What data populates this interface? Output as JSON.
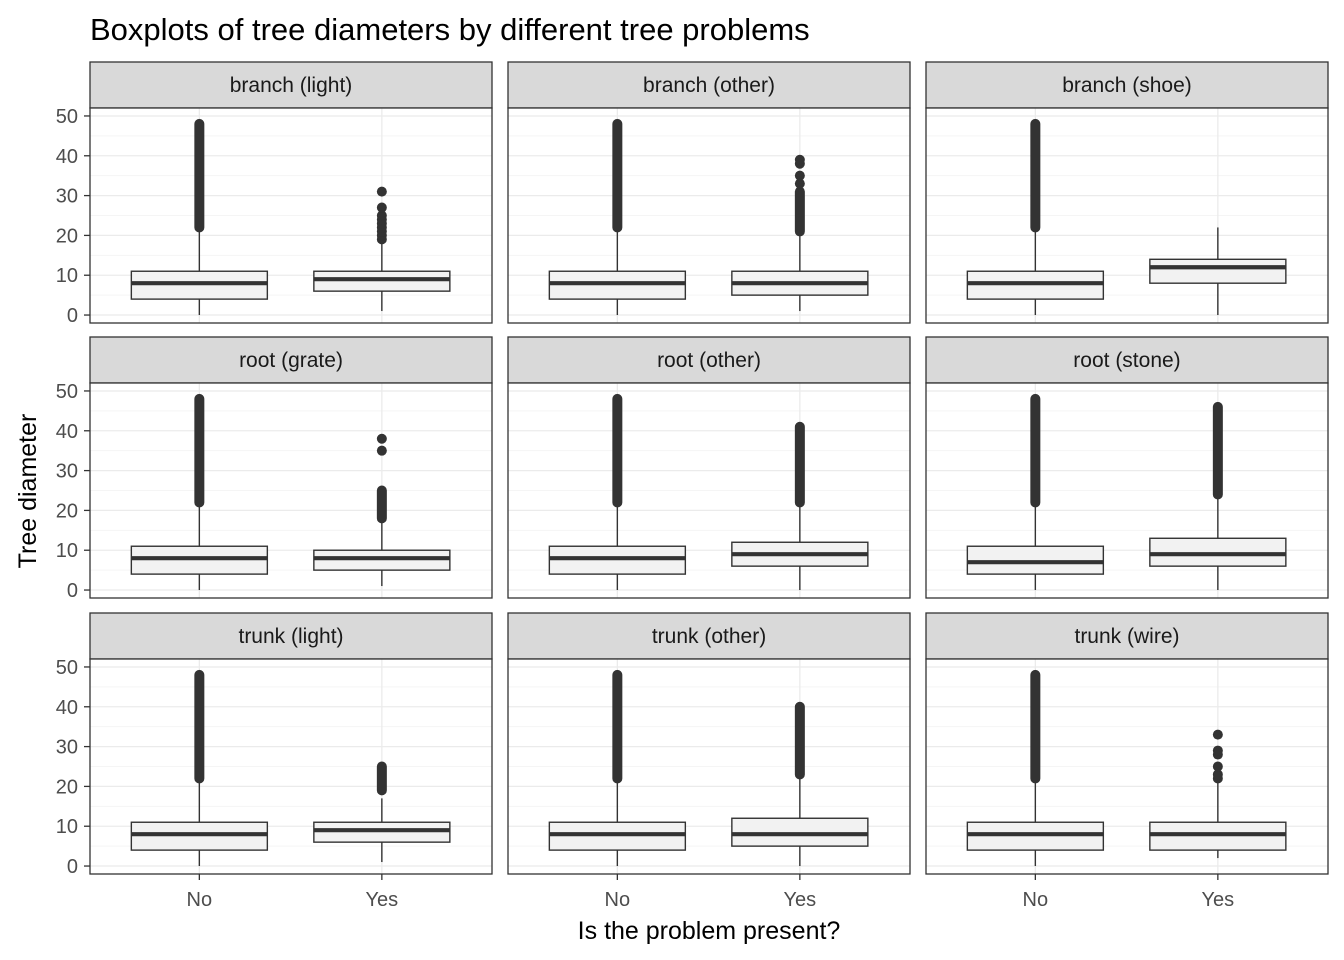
{
  "chart_data": {
    "type": "boxplot",
    "title": "Boxplots of tree diameters by different tree problems",
    "xlabel": "Is the problem present?",
    "ylabel": "Tree diameter",
    "categories": [
      "No",
      "Yes"
    ],
    "ylim": [
      -2,
      52
    ],
    "yticks": [
      0,
      10,
      20,
      30,
      40,
      50
    ],
    "grid": true,
    "colors": {
      "box_fill": "#f2f2f2",
      "box_stroke": "#333333",
      "strip_fill": "#d9d9d9",
      "panel_border": "#333333",
      "grid_major": "#ebebeb",
      "grid_minor": "#f5f5f5"
    },
    "panels": [
      {
        "label": "branch (light)",
        "boxes": [
          {
            "category": "No",
            "min": 0,
            "q1": 4,
            "median": 8,
            "q3": 11,
            "max": 22,
            "outliers_from": 22,
            "outliers_to": 48,
            "outliers": []
          },
          {
            "category": "Yes",
            "min": 1,
            "q1": 6,
            "median": 9,
            "q3": 11,
            "max": 18,
            "outliers_from": null,
            "outliers_to": null,
            "outliers": [
              19,
              20,
              21,
              22,
              23,
              24,
              25,
              27,
              31
            ]
          }
        ]
      },
      {
        "label": "branch (other)",
        "boxes": [
          {
            "category": "No",
            "min": 0,
            "q1": 4,
            "median": 8,
            "q3": 11,
            "max": 22,
            "outliers_from": 22,
            "outliers_to": 48,
            "outliers": []
          },
          {
            "category": "Yes",
            "min": 1,
            "q1": 5,
            "median": 8,
            "q3": 11,
            "max": 20,
            "outliers_from": 21,
            "outliers_to": 31,
            "outliers": [
              33,
              35,
              38,
              39
            ]
          }
        ]
      },
      {
        "label": "branch (shoe)",
        "boxes": [
          {
            "category": "No",
            "min": 0,
            "q1": 4,
            "median": 8,
            "q3": 11,
            "max": 22,
            "outliers_from": 22,
            "outliers_to": 48,
            "outliers": []
          },
          {
            "category": "Yes",
            "min": 0,
            "q1": 8,
            "median": 12,
            "q3": 14,
            "max": 22,
            "outliers_from": null,
            "outliers_to": null,
            "outliers": []
          }
        ]
      },
      {
        "label": "root (grate)",
        "boxes": [
          {
            "category": "No",
            "min": 0,
            "q1": 4,
            "median": 8,
            "q3": 11,
            "max": 22,
            "outliers_from": 22,
            "outliers_to": 48,
            "outliers": []
          },
          {
            "category": "Yes",
            "min": 1,
            "q1": 5,
            "median": 8,
            "q3": 10,
            "max": 17,
            "outliers_from": 18,
            "outliers_to": 25,
            "outliers": [
              35,
              38
            ]
          }
        ]
      },
      {
        "label": "root (other)",
        "boxes": [
          {
            "category": "No",
            "min": 0,
            "q1": 4,
            "median": 8,
            "q3": 11,
            "max": 22,
            "outliers_from": 22,
            "outliers_to": 48,
            "outliers": []
          },
          {
            "category": "Yes",
            "min": 0,
            "q1": 6,
            "median": 9,
            "q3": 12,
            "max": 21,
            "outliers_from": 22,
            "outliers_to": 41,
            "outliers": []
          }
        ]
      },
      {
        "label": "root (stone)",
        "boxes": [
          {
            "category": "No",
            "min": 0,
            "q1": 4,
            "median": 7,
            "q3": 11,
            "max": 22,
            "outliers_from": 22,
            "outliers_to": 48,
            "outliers": []
          },
          {
            "category": "Yes",
            "min": 0,
            "q1": 6,
            "median": 9,
            "q3": 13,
            "max": 23,
            "outliers_from": 24,
            "outliers_to": 46,
            "outliers": []
          }
        ]
      },
      {
        "label": "trunk (light)",
        "boxes": [
          {
            "category": "No",
            "min": 0,
            "q1": 4,
            "median": 8,
            "q3": 11,
            "max": 22,
            "outliers_from": 22,
            "outliers_to": 48,
            "outliers": []
          },
          {
            "category": "Yes",
            "min": 1,
            "q1": 6,
            "median": 9,
            "q3": 11,
            "max": 17,
            "outliers_from": 19,
            "outliers_to": 25,
            "outliers": []
          }
        ]
      },
      {
        "label": "trunk (other)",
        "boxes": [
          {
            "category": "No",
            "min": 0,
            "q1": 4,
            "median": 8,
            "q3": 11,
            "max": 22,
            "outliers_from": 22,
            "outliers_to": 48,
            "outliers": []
          },
          {
            "category": "Yes",
            "min": 0,
            "q1": 5,
            "median": 8,
            "q3": 12,
            "max": 22,
            "outliers_from": 23,
            "outliers_to": 40,
            "outliers": []
          }
        ]
      },
      {
        "label": "trunk (wire)",
        "boxes": [
          {
            "category": "No",
            "min": 0,
            "q1": 4,
            "median": 8,
            "q3": 11,
            "max": 22,
            "outliers_from": 22,
            "outliers_to": 48,
            "outliers": []
          },
          {
            "category": "Yes",
            "min": 2,
            "q1": 4,
            "median": 8,
            "q3": 11,
            "max": 21,
            "outliers_from": null,
            "outliers_to": null,
            "outliers": [
              22,
              23,
              25,
              28,
              29,
              33
            ]
          }
        ]
      }
    ]
  }
}
